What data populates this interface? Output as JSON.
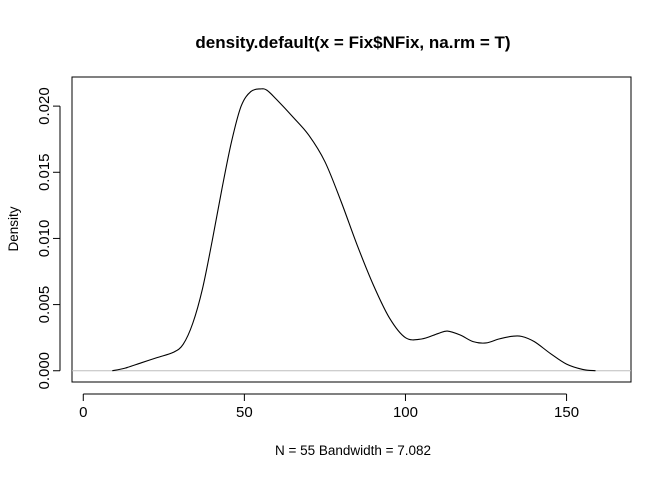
{
  "chart_data": {
    "type": "line",
    "title": "density.default(x = Fix$NFix, na.rm = T)",
    "xlabel": "N = 55   Bandwidth = 7.082",
    "ylabel": "Density",
    "xlim": [
      -3.5,
      170
    ],
    "ylim": [
      -0.00085,
      0.0222
    ],
    "x_ticks": [
      0,
      50,
      100,
      150
    ],
    "x_tick_labels": [
      "0",
      "50",
      "100",
      "150"
    ],
    "y_ticks": [
      0.0,
      0.005,
      0.01,
      0.015,
      0.02
    ],
    "y_tick_labels": [
      "0.000",
      "0.005",
      "0.010",
      "0.015",
      "0.020"
    ],
    "zero_line": true,
    "grid": false,
    "series": [
      {
        "x": [
          9,
          13,
          18,
          23,
          28,
          31,
          34,
          37,
          40,
          43,
          46,
          49,
          52,
          55,
          57,
          60,
          65,
          70,
          75,
          80,
          85,
          90,
          95,
          100,
          105,
          110,
          113,
          117,
          121,
          125,
          129,
          133,
          136,
          140,
          145,
          150,
          155,
          159
        ],
        "y": [
          0.0,
          0.0002,
          0.0006,
          0.001,
          0.0014,
          0.002,
          0.0036,
          0.0062,
          0.0098,
          0.0137,
          0.0173,
          0.02,
          0.0211,
          0.0213,
          0.0212,
          0.0205,
          0.0192,
          0.0178,
          0.0158,
          0.0128,
          0.0095,
          0.0065,
          0.004,
          0.0025,
          0.0024,
          0.0028,
          0.003,
          0.0027,
          0.0022,
          0.0021,
          0.0024,
          0.0026,
          0.0026,
          0.0022,
          0.0013,
          0.0005,
          0.0001,
          0.0
        ],
        "color": "#000000"
      }
    ]
  }
}
